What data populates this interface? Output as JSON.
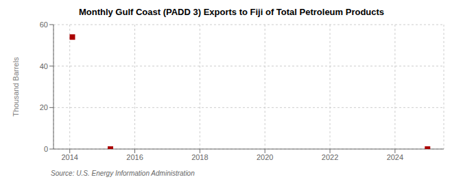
{
  "chart_data": {
    "type": "scatter",
    "title": "Monthly Gulf Coast (PADD 3) Exports to Fiji of Total Petroleum Products",
    "ylabel": "Thousand Barrels",
    "annotation": "Source: U.S. Energy Information Administration",
    "x": [
      2014.08,
      2015.25,
      2025.0
    ],
    "values": [
      54,
      0,
      0
    ],
    "color": "#aa0000",
    "marker": "square",
    "xlim": [
      2013.5,
      2025.5
    ],
    "ylim": [
      0,
      60
    ],
    "xticks": [
      2014,
      2016,
      2018,
      2020,
      2022,
      2024
    ],
    "yticks": [
      0,
      20,
      40,
      60
    ],
    "grid": true
  }
}
